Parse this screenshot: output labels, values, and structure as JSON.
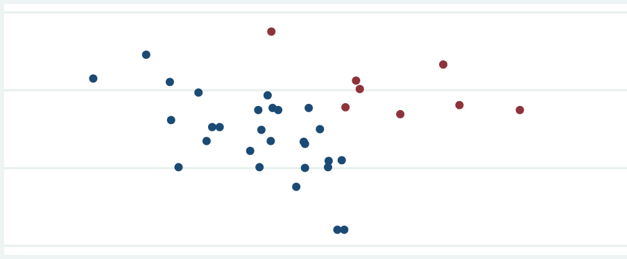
{
  "chart_data": {
    "type": "scatter",
    "title": "",
    "xlabel": "",
    "ylabel": "",
    "grid": true,
    "legend": "none",
    "xlim": [
      0,
      100
    ],
    "ylim": [
      0,
      100
    ],
    "y_gridlines": [
      0,
      33.3,
      66.7,
      100
    ],
    "colors": {
      "background": "#eef4f3",
      "plot_area": "#ffffff",
      "grid": "#e8f0ee",
      "series_blue": "#1b4b75",
      "series_red": "#8e333b"
    },
    "series": [
      {
        "color_key": "series_blue",
        "points": [
          {
            "x": 14.3,
            "y": 71.7
          },
          {
            "x": 22.8,
            "y": 81.9
          },
          {
            "x": 26.6,
            "y": 70.2
          },
          {
            "x": 31.2,
            "y": 65.7
          },
          {
            "x": 26.8,
            "y": 53.9
          },
          {
            "x": 33.4,
            "y": 50.9
          },
          {
            "x": 34.6,
            "y": 50.9
          },
          {
            "x": 32.5,
            "y": 44.9
          },
          {
            "x": 28.0,
            "y": 33.7
          },
          {
            "x": 42.3,
            "y": 64.5
          },
          {
            "x": 40.8,
            "y": 58.2
          },
          {
            "x": 43.1,
            "y": 59.1
          },
          {
            "x": 44.0,
            "y": 58.2
          },
          {
            "x": 48.9,
            "y": 59.1
          },
          {
            "x": 41.3,
            "y": 49.7
          },
          {
            "x": 42.8,
            "y": 44.9
          },
          {
            "x": 39.5,
            "y": 40.7
          },
          {
            "x": 41.0,
            "y": 33.7
          },
          {
            "x": 48.1,
            "y": 44.6
          },
          {
            "x": 48.3,
            "y": 43.7
          },
          {
            "x": 50.7,
            "y": 50.0
          },
          {
            "x": 52.1,
            "y": 36.4
          },
          {
            "x": 52.0,
            "y": 33.7
          },
          {
            "x": 54.2,
            "y": 36.7
          },
          {
            "x": 48.3,
            "y": 33.4
          },
          {
            "x": 46.9,
            "y": 25.3
          },
          {
            "x": 53.5,
            "y": 6.9
          },
          {
            "x": 54.6,
            "y": 6.9
          }
        ]
      },
      {
        "color_key": "series_red",
        "points": [
          {
            "x": 42.9,
            "y": 91.8
          },
          {
            "x": 56.5,
            "y": 70.8
          },
          {
            "x": 57.1,
            "y": 67.2
          },
          {
            "x": 54.8,
            "y": 59.4
          },
          {
            "x": 63.6,
            "y": 56.4
          },
          {
            "x": 70.5,
            "y": 77.7
          },
          {
            "x": 73.1,
            "y": 60.3
          },
          {
            "x": 82.8,
            "y": 58.2
          }
        ]
      }
    ]
  }
}
